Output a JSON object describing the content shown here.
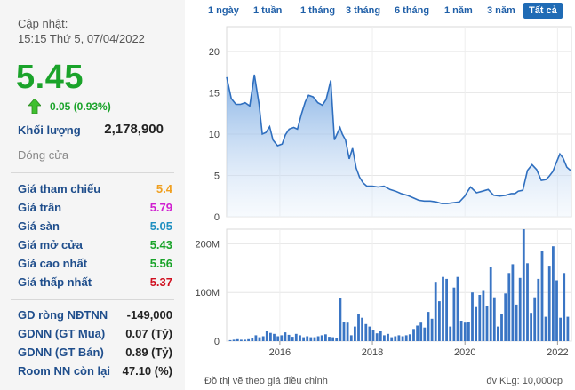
{
  "update": {
    "label": "Cập nhật:",
    "time": "15:15 Thứ 5, 07/04/2022"
  },
  "price": "5.45",
  "change": "0.05 (0.93%)",
  "volume": {
    "label": "Khối lượng",
    "value": "2,178,900"
  },
  "status": "Đóng cửa",
  "prices": [
    {
      "label": "Giá tham chiếu",
      "value": "5.4",
      "color": "#f0a020"
    },
    {
      "label": "Giá trần",
      "value": "5.79",
      "color": "#d020d0"
    },
    {
      "label": "Giá sàn",
      "value": "5.05",
      "color": "#1f8fc0"
    },
    {
      "label": "Giá mở cửa",
      "value": "5.43",
      "color": "#1aa32a"
    },
    {
      "label": "Giá cao nhất",
      "value": "5.56",
      "color": "#1aa32a"
    },
    {
      "label": "Giá thấp nhất",
      "value": "5.37",
      "color": "#d01020"
    }
  ],
  "foreign": [
    {
      "label": "GD ròng NĐTNN",
      "value": "-149,000"
    },
    {
      "label": "GDNN (GT Mua)",
      "value": "0.07 (Tỷ)"
    },
    {
      "label": "GDNN (GT Bán)",
      "value": "0.89 (Tỷ)"
    },
    {
      "label": "Room NN còn lại",
      "value": "47.10 (%)"
    }
  ],
  "tabs": [
    "1 ngày",
    "1 tuần",
    "1 tháng",
    "3 tháng",
    "6 tháng",
    "1 năm",
    "3 năm",
    "Tất cả"
  ],
  "active_tab": "Tất cả",
  "footnote_left": "Đồ thị vẽ theo giá điều chỉnh",
  "footnote_right": "đv KLg: 10,000cp",
  "chart_data": [
    {
      "type": "area",
      "x_range": [
        2014.85,
        2022.3
      ],
      "ylim": [
        0,
        23
      ],
      "yticks": [
        0,
        5,
        10,
        15,
        20
      ],
      "ytick_labels": [
        "0",
        "5",
        "10",
        "15",
        "20"
      ],
      "grid": true,
      "x": [
        2014.85,
        2014.95,
        2015.05,
        2015.15,
        2015.25,
        2015.35,
        2015.45,
        2015.55,
        2015.62,
        2015.7,
        2015.78,
        2015.85,
        2015.95,
        2016.05,
        2016.12,
        2016.2,
        2016.3,
        2016.38,
        2016.47,
        2016.55,
        2016.62,
        2016.72,
        2016.82,
        2016.92,
        2017.0,
        2017.1,
        2017.18,
        2017.3,
        2017.35,
        2017.42,
        2017.5,
        2017.57,
        2017.65,
        2017.72,
        2017.8,
        2017.88,
        2018.0,
        2018.12,
        2018.25,
        2018.38,
        2018.5,
        2018.62,
        2018.75,
        2018.88,
        2019.0,
        2019.12,
        2019.25,
        2019.38,
        2019.5,
        2019.62,
        2019.75,
        2019.88,
        2020.0,
        2020.05,
        2020.12,
        2020.25,
        2020.38,
        2020.5,
        2020.62,
        2020.75,
        2020.88,
        2021.0,
        2021.08,
        2021.15,
        2021.25,
        2021.35,
        2021.45,
        2021.55,
        2021.65,
        2021.75,
        2021.82,
        2021.9,
        2021.97,
        2022.05,
        2022.12,
        2022.2,
        2022.28
      ],
      "y": [
        16.9,
        14.3,
        13.6,
        13.6,
        13.8,
        13.4,
        17.2,
        13.6,
        10.0,
        10.2,
        10.9,
        9.3,
        8.6,
        8.8,
        9.9,
        10.6,
        10.8,
        10.6,
        12.5,
        13.9,
        14.7,
        14.5,
        13.8,
        13.5,
        14.2,
        16.5,
        9.3,
        10.8,
        10.0,
        9.3,
        7.0,
        8.3,
        5.9,
        4.8,
        4.1,
        3.7,
        3.7,
        3.6,
        3.7,
        3.3,
        3.1,
        2.8,
        2.6,
        2.3,
        2.0,
        1.9,
        1.9,
        1.8,
        1.6,
        1.6,
        1.7,
        1.8,
        2.5,
        3.0,
        3.6,
        2.9,
        3.1,
        3.3,
        2.6,
        2.5,
        2.6,
        2.8,
        2.8,
        3.1,
        3.2,
        5.6,
        6.3,
        5.7,
        4.4,
        4.5,
        4.9,
        5.5,
        6.5,
        7.6,
        7.1,
        6.0,
        5.6
      ],
      "color": "#2f6fbf"
    },
    {
      "type": "bar",
      "ylim": [
        0,
        230
      ],
      "yticks": [
        0,
        100,
        200
      ],
      "ytick_labels": [
        "0",
        "100M",
        "200M"
      ],
      "xticks": [
        2016,
        2018,
        2020,
        2022
      ],
      "xtick_labels": [
        "2016",
        "2018",
        "2020",
        "2022"
      ],
      "grid": true,
      "values": [
        2,
        3,
        4,
        3,
        3,
        4,
        6,
        12,
        8,
        10,
        20,
        17,
        15,
        10,
        12,
        18,
        13,
        9,
        15,
        12,
        8,
        10,
        8,
        8,
        10,
        12,
        14,
        9,
        8,
        6,
        88,
        40,
        38,
        12,
        30,
        55,
        48,
        35,
        30,
        22,
        16,
        20,
        12,
        15,
        8,
        10,
        12,
        10,
        12,
        14,
        25,
        32,
        38,
        28,
        60,
        46,
        122,
        82,
        132,
        128,
        30,
        110,
        132,
        42,
        38,
        40,
        100,
        70,
        95,
        105,
        72,
        152,
        90,
        30,
        55,
        98,
        140,
        158,
        75,
        130,
        230,
        160,
        58,
        90,
        128,
        185,
        50,
        155,
        195,
        125,
        48,
        140,
        50
      ],
      "color": "#3a75c4"
    }
  ]
}
